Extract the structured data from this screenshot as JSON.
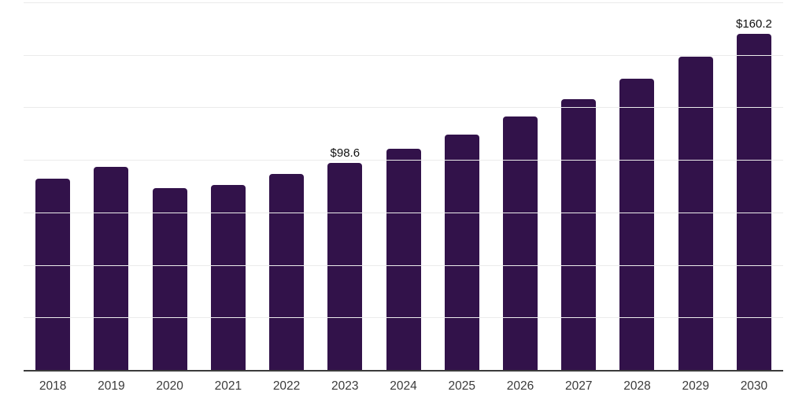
{
  "chart_data": {
    "type": "bar",
    "title": "",
    "xlabel": "",
    "ylabel": "",
    "categories": [
      "2018",
      "2019",
      "2020",
      "2021",
      "2022",
      "2023",
      "2024",
      "2025",
      "2026",
      "2027",
      "2028",
      "2029",
      "2030"
    ],
    "values": [
      91.2,
      96.5,
      86.6,
      88.1,
      93.4,
      98.6,
      105.3,
      112.2,
      120.6,
      129.0,
      138.8,
      149.1,
      160.2
    ],
    "value_labels": [
      "",
      "",
      "",
      "",
      "",
      "$98.6",
      "",
      "",
      "",
      "",
      "",
      "",
      "$160.2"
    ],
    "ylim": [
      0,
      175
    ],
    "gridline_step": 25,
    "grid": true,
    "legend": false,
    "colors": {
      "bar": "#32124A",
      "gridline": "#ebebeb",
      "axis": "#3c3c3c",
      "tick_label": "#3a3a3a",
      "value_label": "#111111",
      "background": "#ffffff"
    }
  }
}
